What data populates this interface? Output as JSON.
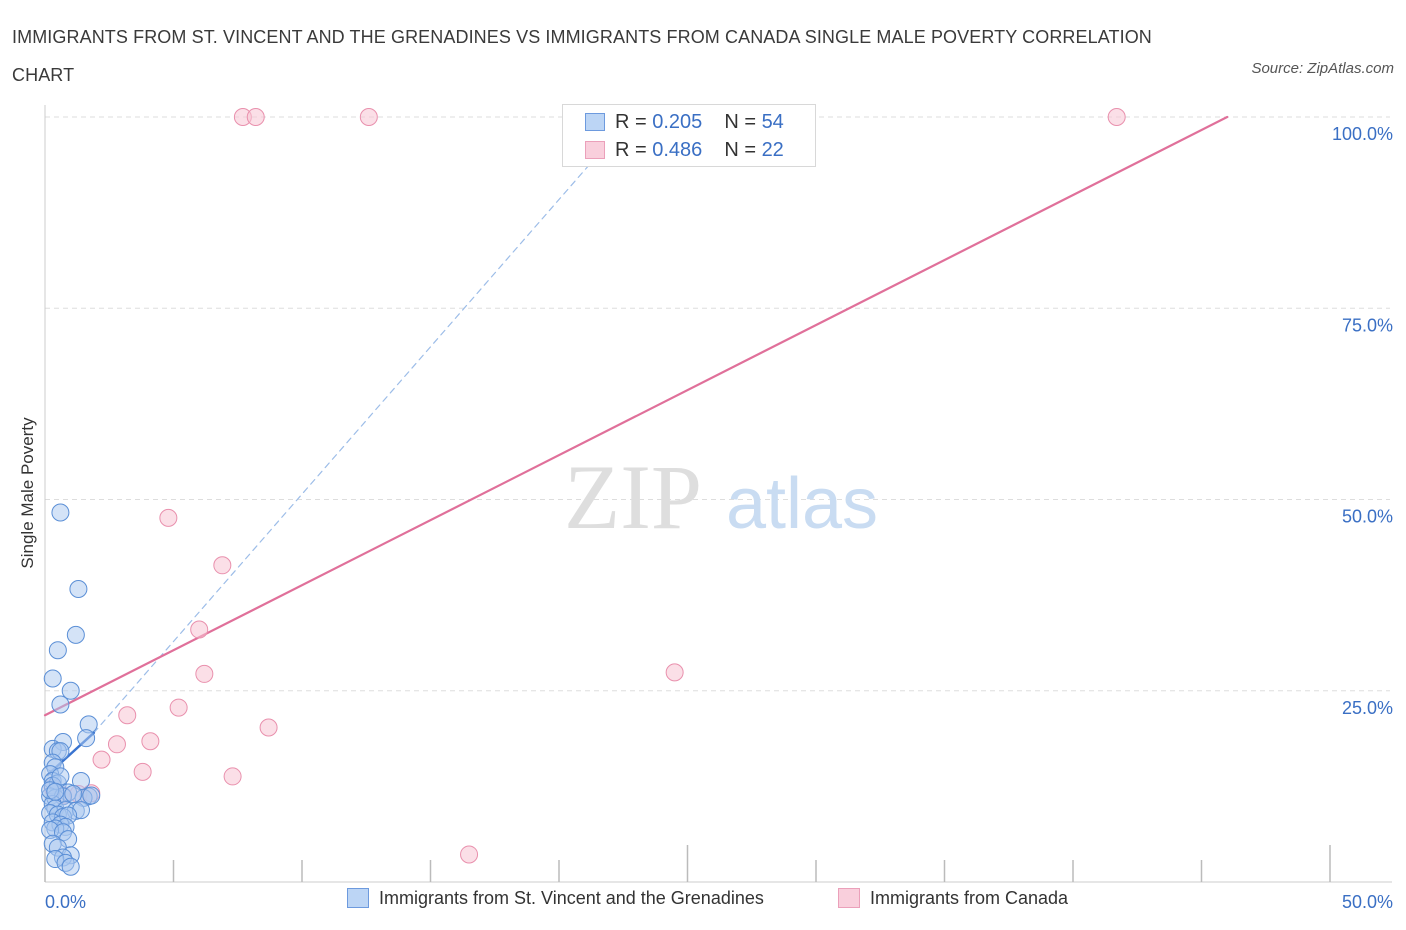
{
  "title": "IMMIGRANTS FROM ST. VINCENT AND THE GRENADINES VS IMMIGRANTS FROM CANADA SINGLE MALE POVERTY CORRELATION CHART",
  "source": "Source: ZipAtlas.com",
  "watermark": {
    "zip": "ZIP",
    "atlas": "atlas"
  },
  "legend_top": {
    "rows": [
      {
        "r_label": "R = ",
        "r_value": "0.205",
        "n_label": "N = ",
        "n_value": "54"
      },
      {
        "r_label": "R = ",
        "r_value": "0.486",
        "n_label": "N = ",
        "n_value": "22"
      }
    ]
  },
  "colors": {
    "blue_fill": "#a9c8f0",
    "blue_stroke": "#5b8fd6",
    "blue_line": "#3a74d0",
    "pink_fill": "#f7c5d4",
    "pink_stroke": "#e990ad",
    "pink_line": "#e0709a",
    "axis_text": "#3a6fc4",
    "grid": "#dddddd"
  },
  "chart_data": {
    "type": "scatter",
    "title": "IMMIGRANTS FROM ST. VINCENT AND THE GRENADINES VS IMMIGRANTS FROM CANADA SINGLE MALE POVERTY CORRELATION CHART",
    "xlabel": "",
    "ylabel": "Single Male Poverty",
    "xlim": [
      0,
      50
    ],
    "ylim": [
      0,
      100
    ],
    "x_tick_labels": [
      "0.0%",
      "50.0%"
    ],
    "y_tick_labels": [
      "25.0%",
      "50.0%",
      "75.0%",
      "100.0%"
    ],
    "y_ticks": [
      25,
      50,
      75,
      100
    ],
    "grid": true,
    "legend_position": "bottom",
    "series": [
      {
        "name": "Immigrants from St. Vincent and the Grenadines",
        "R": 0.205,
        "N": 54,
        "trend_solid": [
          [
            0.1,
            14.0
          ],
          [
            1.9,
            19.5
          ]
        ],
        "trend_dashed": [
          [
            1.9,
            19.5
          ],
          [
            22.8,
            100.0
          ]
        ],
        "points": [
          [
            0.6,
            48.3
          ],
          [
            1.3,
            38.3
          ],
          [
            1.2,
            32.3
          ],
          [
            0.5,
            30.3
          ],
          [
            0.3,
            26.6
          ],
          [
            1.0,
            25.0
          ],
          [
            0.6,
            23.2
          ],
          [
            1.7,
            20.6
          ],
          [
            1.6,
            18.8
          ],
          [
            0.7,
            18.3
          ],
          [
            0.3,
            17.4
          ],
          [
            0.5,
            17.1
          ],
          [
            0.6,
            17.1
          ],
          [
            0.3,
            15.6
          ],
          [
            0.4,
            15.0
          ],
          [
            0.2,
            14.1
          ],
          [
            0.3,
            13.2
          ],
          [
            0.5,
            12.9
          ],
          [
            0.3,
            12.6
          ],
          [
            1.4,
            13.2
          ],
          [
            0.9,
            11.7
          ],
          [
            0.2,
            11.2
          ],
          [
            0.4,
            11.0
          ],
          [
            0.7,
            11.2
          ],
          [
            1.7,
            11.2
          ],
          [
            1.5,
            11.0
          ],
          [
            1.8,
            11.3
          ],
          [
            0.3,
            10.2
          ],
          [
            0.4,
            9.6
          ],
          [
            0.8,
            9.4
          ],
          [
            1.2,
            9.3
          ],
          [
            1.4,
            9.4
          ],
          [
            0.2,
            9.0
          ],
          [
            0.5,
            8.8
          ],
          [
            0.7,
            8.5
          ],
          [
            0.9,
            8.7
          ],
          [
            0.3,
            7.8
          ],
          [
            0.6,
            7.5
          ],
          [
            0.8,
            7.2
          ],
          [
            0.4,
            7.0
          ],
          [
            0.2,
            6.8
          ],
          [
            0.7,
            6.5
          ],
          [
            0.9,
            5.6
          ],
          [
            0.3,
            5.0
          ],
          [
            0.5,
            4.5
          ],
          [
            1.0,
            3.5
          ],
          [
            0.7,
            3.2
          ],
          [
            0.4,
            3.0
          ],
          [
            0.8,
            2.5
          ],
          [
            1.0,
            2.0
          ],
          [
            0.2,
            12.0
          ],
          [
            0.6,
            13.8
          ],
          [
            0.4,
            11.8
          ],
          [
            1.1,
            11.5
          ]
        ]
      },
      {
        "name": "Immigrants from Canada",
        "R": 0.486,
        "N": 22,
        "trend_solid": [
          [
            0.0,
            21.8
          ],
          [
            46.0,
            100.0
          ]
        ],
        "points": [
          [
            7.7,
            100.0
          ],
          [
            8.2,
            100.0
          ],
          [
            12.6,
            100.0
          ],
          [
            41.7,
            100.0
          ],
          [
            4.8,
            47.6
          ],
          [
            6.9,
            41.4
          ],
          [
            6.0,
            33.0
          ],
          [
            6.2,
            27.2
          ],
          [
            24.5,
            27.4
          ],
          [
            5.2,
            22.8
          ],
          [
            3.2,
            21.8
          ],
          [
            8.7,
            20.2
          ],
          [
            4.1,
            18.4
          ],
          [
            2.8,
            18.0
          ],
          [
            2.2,
            16.0
          ],
          [
            3.8,
            14.4
          ],
          [
            7.3,
            13.8
          ],
          [
            0.7,
            11.3
          ],
          [
            1.3,
            11.5
          ],
          [
            1.8,
            11.6
          ],
          [
            16.5,
            3.6
          ],
          [
            0.3,
            12.3
          ]
        ]
      }
    ]
  }
}
